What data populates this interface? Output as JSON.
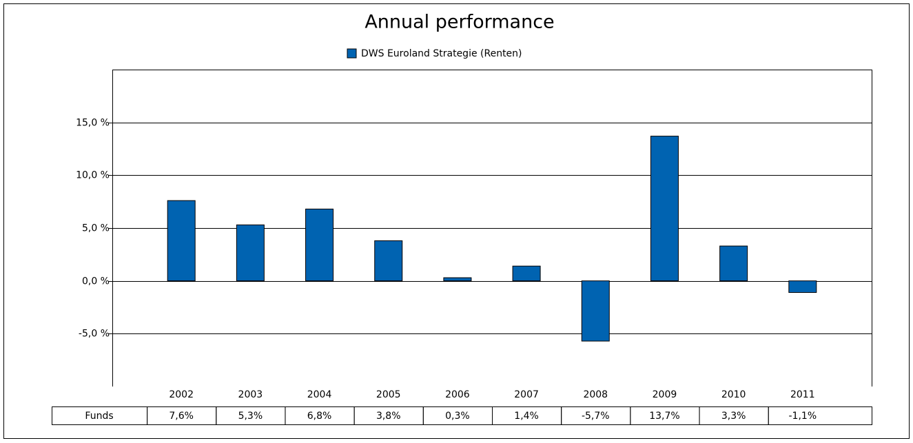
{
  "chart_data": {
    "type": "bar",
    "title": "Annual performance",
    "series": [
      {
        "name": "DWS Euroland Strategie (Renten)",
        "color": "#0063b1",
        "values": [
          7.6,
          5.3,
          6.8,
          3.8,
          0.3,
          1.4,
          -5.7,
          13.7,
          3.3,
          -1.1
        ],
        "value_labels": [
          "7,6%",
          "5,3%",
          "6,8%",
          "3,8%",
          "0,3%",
          "1,4%",
          "-5,7%",
          "13,7%",
          "3,3%",
          "-1,1%"
        ]
      }
    ],
    "table_row_label": "Funds",
    "categories": [
      "2002",
      "2003",
      "2004",
      "2005",
      "2006",
      "2007",
      "2008",
      "2009",
      "2010",
      "2011"
    ],
    "ylim": [
      -10,
      20
    ],
    "yticks": [
      {
        "value": -5,
        "label": "-5,0 %"
      },
      {
        "value": 0,
        "label": "0,0 %"
      },
      {
        "value": 5,
        "label": "5,0 %"
      },
      {
        "value": 10,
        "label": "10,0 %"
      },
      {
        "value": 15,
        "label": "15,0 %"
      }
    ],
    "grid": true
  }
}
